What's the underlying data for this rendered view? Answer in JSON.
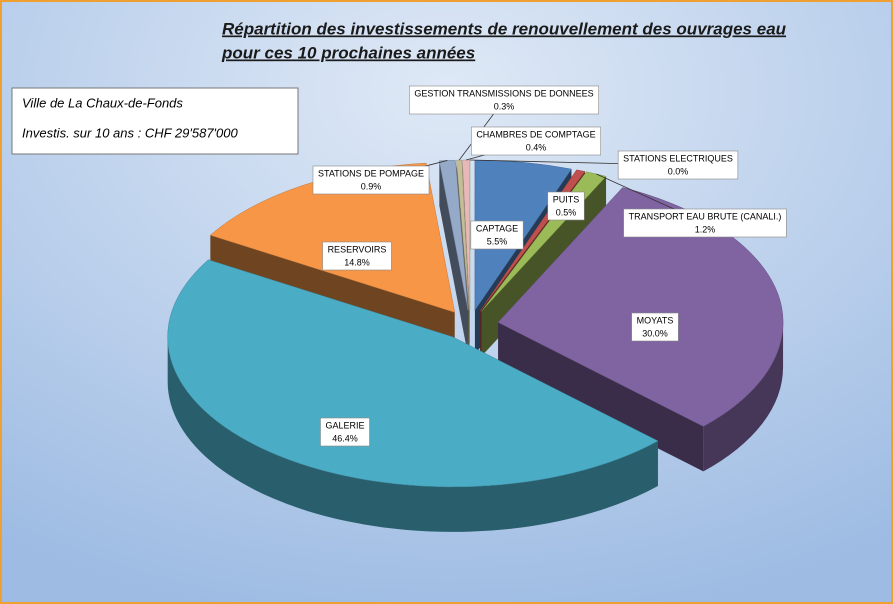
{
  "chart_data": {
    "type": "pie3d",
    "title": "Répartition des investissements de renouvellement des ouvrages eau",
    "subtitle": "pour ces 10 prochaines années",
    "annotations": [
      "Ville de La Chaux-de-Fonds",
      "Investis. sur 10 ans : CHF 29'587'000"
    ],
    "categories": [
      "CAPTAGE",
      "PUITS",
      "TRANSPORT EAU BRUTE (CANALI.)",
      "MOYATS",
      "GALERIE",
      "RESERVOIRS",
      "STATIONS DE POMPAGE",
      "GESTION TRANSMISSIONS DE DONNEES",
      "CHAMBRES DE COMPTAGE",
      "STATIONS ELECTRIQUES"
    ],
    "values": [
      5.5,
      0.5,
      1.2,
      30.0,
      46.4,
      14.8,
      0.9,
      0.3,
      0.4,
      0.0
    ],
    "value_labels": [
      "5.5%",
      "0.5%",
      "1.2%",
      "30.0%",
      "46.4%",
      "14.8%",
      "0.9%",
      "0.3%",
      "0.4%",
      "0.0%"
    ],
    "colors": [
      "#4f81bd",
      "#c0504d",
      "#9bbb59",
      "#8064a2",
      "#4bacc6",
      "#f79646",
      "#95a9c9",
      "#c4bd97",
      "#e6b9b8",
      "#d7e4bd"
    ]
  }
}
